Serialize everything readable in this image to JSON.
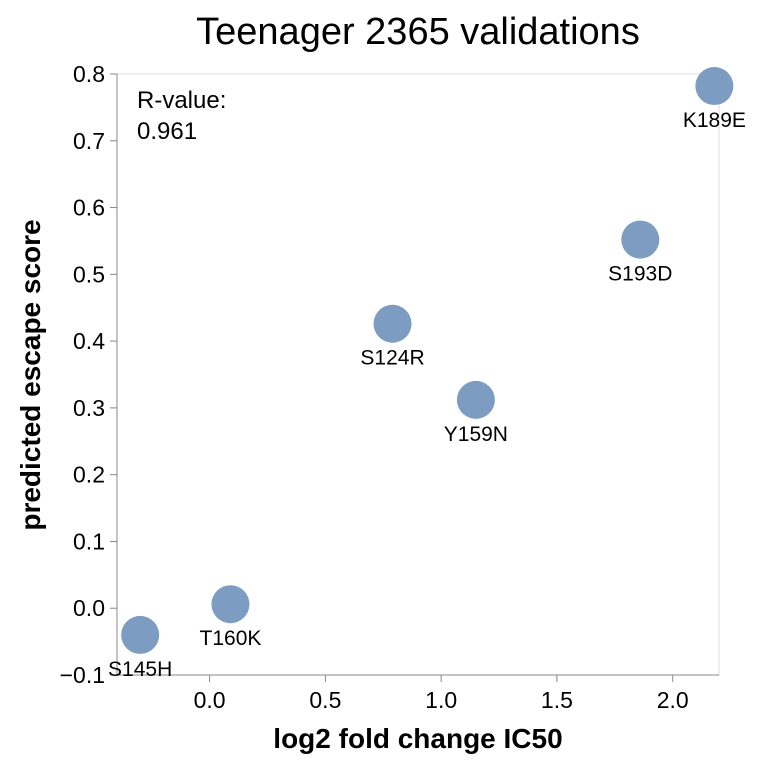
{
  "chart_data": {
    "type": "scatter",
    "title": "Teenager 2365 validations",
    "xlabel": "log2 fold change IC50",
    "ylabel": "predicted escape score",
    "xlim": [
      -0.4,
      2.2
    ],
    "ylim": [
      -0.1,
      0.8
    ],
    "xticks": [
      0.0,
      0.5,
      1.0,
      1.5,
      2.0
    ],
    "yticks": [
      -0.1,
      0.0,
      0.1,
      0.2,
      0.3,
      0.4,
      0.5,
      0.6,
      0.7,
      0.8
    ],
    "xtick_labels": [
      "0.0",
      "0.5",
      "1.0",
      "1.5",
      "2.0"
    ],
    "ytick_labels": [
      "−0.1",
      "0.0",
      "0.1",
      "0.2",
      "0.3",
      "0.4",
      "0.5",
      "0.6",
      "0.7",
      "0.8"
    ],
    "grid": false,
    "point_color": "#7c9cc2",
    "annotation": {
      "label": "R-value:",
      "value": "0.961"
    },
    "points": [
      {
        "label": "K189E",
        "x": 2.18,
        "y": 0.782
      },
      {
        "label": "S193D",
        "x": 1.86,
        "y": 0.552
      },
      {
        "label": "S124R",
        "x": 0.79,
        "y": 0.426
      },
      {
        "label": "Y159N",
        "x": 1.15,
        "y": 0.312
      },
      {
        "label": "T160K",
        "x": 0.09,
        "y": 0.006
      },
      {
        "label": "S145H",
        "x": -0.3,
        "y": -0.04
      }
    ]
  }
}
